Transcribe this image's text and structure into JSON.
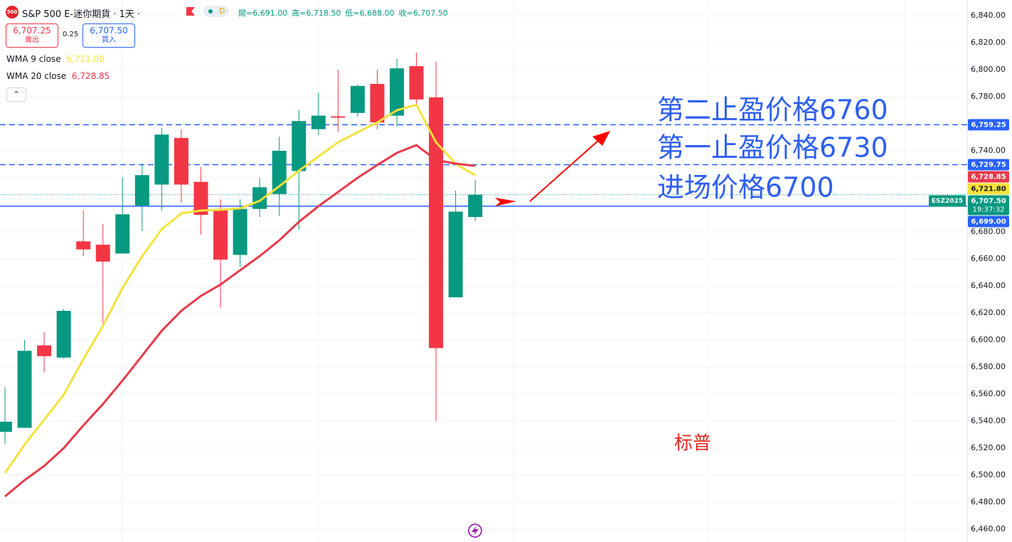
{
  "header": {
    "logo": "500",
    "title": "S&P 500 E-迷你期貨 · 1天 ·",
    "status": "D",
    "ohlc": [
      "開=6,691.00",
      "高=6,718.50",
      "低=6,688.00",
      "收=6,707.50"
    ],
    "sell": {
      "price": "6,707.25",
      "label": "賣出"
    },
    "spread": "0.25",
    "buy": {
      "price": "6,707.50",
      "label": "買入"
    }
  },
  "chart_data": {
    "type": "candlestick",
    "open": [
      6532,
      6535,
      6596,
      6587,
      6673,
      6670.5,
      6664,
      6699.5,
      6715,
      6749.5,
      6717,
      6697,
      6663,
      6697,
      6708,
      6725,
      6756,
      6765.5,
      6768,
      6789.5,
      6766,
      6802.6,
      6779.5,
      6631.6,
      6691
    ],
    "high": [
      6565,
      6600,
      6606,
      6623,
      6696,
      6686,
      6720,
      6730.5,
      6757,
      6756,
      6728,
      6704,
      6704,
      6720,
      6750.5,
      6770,
      6783,
      6800,
      6789,
      6800,
      6808,
      6812.6,
      6806,
      6710.5,
      6718.5
    ],
    "low": [
      6523,
      6535,
      6576,
      6586,
      6662,
      6611,
      6664,
      6680.5,
      6696,
      6701.6,
      6678,
      6624,
      6654,
      6691,
      6692,
      6681.6,
      6751.6,
      6754,
      6765,
      6756,
      6758,
      6774,
      6540,
      6631.6,
      6688
    ],
    "close": [
      6539.5,
      6592,
      6588,
      6621.6,
      6667,
      6658,
      6693,
      6722,
      6752,
      6715,
      6692.6,
      6659.5,
      6697,
      6713,
      6740,
      6762,
      6766,
      6764.5,
      6788,
      6761,
      6801,
      6778,
      6594,
      6695,
      6707.5
    ],
    "up_color": "#089981",
    "down_color": "#f23645",
    "series": [
      {
        "name": "WMA 9 close",
        "color": "#f5e23b",
        "last_label": "6,721.80",
        "values": [
          6501.6,
          6522.6,
          6541,
          6559.5,
          6585.8,
          6610.5,
          6638.4,
          6662,
          6682,
          6693.7,
          6695.8,
          6696.3,
          6697.4,
          6703,
          6713.7,
          6725.3,
          6735.8,
          6746.3,
          6753.7,
          6761,
          6770,
          6774,
          6746.3,
          6730.5,
          6721.8
        ]
      },
      {
        "name": "WMA 20 close",
        "color": "#e8394a",
        "last_label": "6,728.85",
        "values": [
          6484.2,
          6496.3,
          6506.8,
          6520,
          6536.8,
          6552.6,
          6570,
          6588.4,
          6606.8,
          6621.6,
          6632.6,
          6641,
          6651.6,
          6662.1,
          6673.7,
          6687.4,
          6699,
          6709.5,
          6720,
          6729.5,
          6738.4,
          6744.2,
          6733.2,
          6730.5,
          6728.85
        ]
      }
    ],
    "ylim": [
      6460,
      6840
    ],
    "yticks": [
      {
        "value": 6460,
        "label": "6,460.00"
      },
      {
        "value": 6480,
        "label": "6,480.00"
      },
      {
        "value": 6500,
        "label": "6,500.00"
      },
      {
        "value": 6520,
        "label": "6,520.00"
      },
      {
        "value": 6540,
        "label": "6,540.00"
      },
      {
        "value": 6560,
        "label": "6,560.00"
      },
      {
        "value": 6580,
        "label": "6,580.00"
      },
      {
        "value": 6600,
        "label": "6,600.00"
      },
      {
        "value": 6620,
        "label": "6,620.00"
      },
      {
        "value": 6640,
        "label": "6,640.00"
      },
      {
        "value": 6660,
        "label": "6,660.00"
      },
      {
        "value": 6680,
        "label": "6,680.00"
      },
      {
        "value": 6700,
        "label": "6,700.00"
      },
      {
        "value": 6720,
        "label": "6,720.00"
      },
      {
        "value": 6740,
        "label": "6,740.00"
      },
      {
        "value": 6760,
        "label": "6,760.00"
      },
      {
        "value": 6780,
        "label": "6,780.00"
      },
      {
        "value": 6800,
        "label": "6,800.00"
      },
      {
        "value": 6820,
        "label": "6,820.00"
      },
      {
        "value": 6840,
        "label": "6,840.00"
      }
    ],
    "grid": true,
    "hlines": [
      {
        "value": 6759.25,
        "label": "6,759.25",
        "color": "#2962ff",
        "style": "dashed"
      },
      {
        "value": 6729.75,
        "label": "6,729.75",
        "color": "#2962ff",
        "style": "dashed"
      },
      {
        "value": 6699,
        "label": "6,699.00",
        "color": "#2962ff",
        "style": "solid"
      }
    ],
    "last_price": {
      "value": 6707.5,
      "label": "6,707.50",
      "countdown": "19:37:32",
      "symbol": "ESZ2025",
      "color": "#089981"
    },
    "annotations": [
      {
        "text": "第二止盈价格6760",
        "color": "#2e5ff0"
      },
      {
        "text": "第一止盈价格6730",
        "color": "#2e5ff0"
      },
      {
        "text": "进场价格6700",
        "color": "#2e5ff0"
      },
      {
        "text": "标普",
        "color": "#e0261f"
      }
    ]
  }
}
